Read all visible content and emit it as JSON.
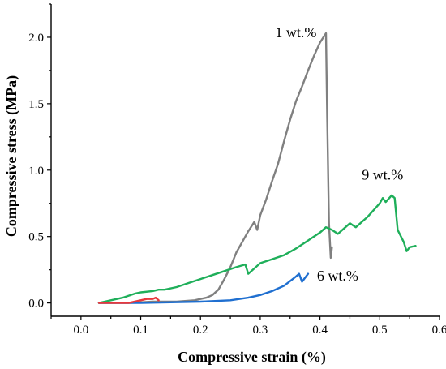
{
  "chart_data": {
    "type": "line",
    "title": "",
    "xlabel": "Compressive strain (%)",
    "ylabel": "Compressive stress (MPa)",
    "xlim": [
      -0.05,
      0.6
    ],
    "ylim": [
      -0.1,
      2.25
    ],
    "x_ticks": [
      "0.0",
      "0.1",
      "0.2",
      "0.3",
      "0.4",
      "0.5",
      "0.6"
    ],
    "y_ticks": [
      "0.0",
      "0.5",
      "1.0",
      "1.5",
      "2.0"
    ],
    "grid": false,
    "annotations": [
      {
        "text": "1 wt.%",
        "x": 0.325,
        "y": 2.0
      },
      {
        "text": "9 wt.%",
        "x": 0.47,
        "y": 0.93
      },
      {
        "text": "6 wt.%",
        "x": 0.395,
        "y": 0.17
      }
    ],
    "series": [
      {
        "color": "#808080",
        "x": [
          0.03,
          0.08,
          0.12,
          0.16,
          0.19,
          0.21,
          0.22,
          0.23,
          0.24,
          0.25,
          0.26,
          0.27,
          0.28,
          0.29,
          0.295,
          0.3,
          0.31,
          0.32,
          0.33,
          0.34,
          0.35,
          0.36,
          0.37,
          0.38,
          0.39,
          0.4,
          0.41,
          0.412,
          0.415,
          0.418,
          0.42
        ],
        "y": [
          0.0,
          0.0,
          0.01,
          0.01,
          0.02,
          0.04,
          0.06,
          0.1,
          0.18,
          0.27,
          0.38,
          0.46,
          0.54,
          0.61,
          0.55,
          0.66,
          0.78,
          0.92,
          1.05,
          1.22,
          1.38,
          1.52,
          1.63,
          1.75,
          1.86,
          1.96,
          2.03,
          1.4,
          0.6,
          0.34,
          0.42
        ]
      },
      {
        "color": "#1faf5a",
        "x": [
          0.03,
          0.05,
          0.07,
          0.09,
          0.1,
          0.12,
          0.13,
          0.14,
          0.16,
          0.18,
          0.2,
          0.22,
          0.24,
          0.26,
          0.275,
          0.28,
          0.3,
          0.32,
          0.34,
          0.36,
          0.38,
          0.4,
          0.41,
          0.42,
          0.43,
          0.45,
          0.46,
          0.48,
          0.5,
          0.505,
          0.51,
          0.52,
          0.525,
          0.53,
          0.54,
          0.545,
          0.55,
          0.56
        ],
        "y": [
          0.0,
          0.02,
          0.04,
          0.07,
          0.08,
          0.09,
          0.1,
          0.1,
          0.12,
          0.15,
          0.18,
          0.21,
          0.24,
          0.27,
          0.29,
          0.22,
          0.3,
          0.33,
          0.36,
          0.41,
          0.47,
          0.53,
          0.57,
          0.55,
          0.52,
          0.6,
          0.57,
          0.65,
          0.75,
          0.79,
          0.76,
          0.81,
          0.79,
          0.55,
          0.46,
          0.39,
          0.42,
          0.43
        ]
      },
      {
        "color": "#1f6fd0",
        "x": [
          0.03,
          0.1,
          0.2,
          0.25,
          0.28,
          0.3,
          0.32,
          0.34,
          0.36,
          0.365,
          0.37,
          0.375,
          0.38
        ],
        "y": [
          0.0,
          0.0,
          0.01,
          0.02,
          0.04,
          0.06,
          0.09,
          0.13,
          0.2,
          0.22,
          0.16,
          0.19,
          0.22
        ]
      },
      {
        "color": "#e8383d",
        "x": [
          0.03,
          0.08,
          0.1,
          0.11,
          0.12,
          0.125,
          0.13
        ],
        "y": [
          0.0,
          0.0,
          0.02,
          0.03,
          0.03,
          0.04,
          0.02
        ]
      }
    ]
  }
}
